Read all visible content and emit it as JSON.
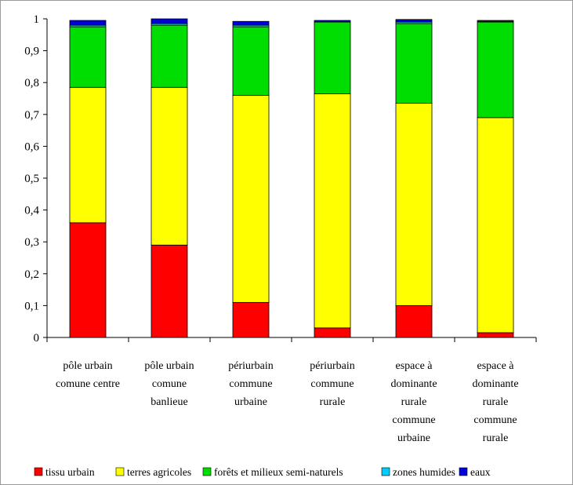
{
  "chart_data": {
    "type": "bar",
    "stacked": true,
    "title": "",
    "xlabel": "",
    "ylabel": "",
    "ylim": [
      0,
      1
    ],
    "yticks": [
      "0",
      "0,1",
      "0,2",
      "0,3",
      "0,4",
      "0,5",
      "0,6",
      "0,7",
      "0,8",
      "0,9",
      "1"
    ],
    "ytick_values": [
      0,
      0.1,
      0.2,
      0.3,
      0.4,
      0.5,
      0.6,
      0.7,
      0.8,
      0.9,
      1
    ],
    "grid": false,
    "legend_position": "bottom",
    "categories": [
      [
        "pôle urbain",
        "comune centre"
      ],
      [
        "pôle urbain",
        "comune",
        "banlieue"
      ],
      [
        "périurbain",
        "commune",
        "urbaine"
      ],
      [
        "périurbain",
        "commune",
        "rurale"
      ],
      [
        "espace à",
        "dominante",
        "rurale",
        "commune",
        "urbaine"
      ],
      [
        "espace à",
        "dominante",
        "rurale",
        "commune",
        "rurale"
      ]
    ],
    "series": [
      {
        "name": "tissu urbain",
        "color": "#ff0000",
        "values": [
          0.36,
          0.29,
          0.11,
          0.03,
          0.1,
          0.015
        ]
      },
      {
        "name": "terres agricoles",
        "color": "#ffff00",
        "values": [
          0.425,
          0.495,
          0.65,
          0.735,
          0.635,
          0.675
        ]
      },
      {
        "name": "forêts et milieux semi-naturels",
        "color": "#00dd00",
        "values": [
          0.19,
          0.195,
          0.215,
          0.225,
          0.25,
          0.3
        ]
      },
      {
        "name": "zones humides",
        "color": "#00ccff",
        "values": [
          0.005,
          0.005,
          0.005,
          0.0,
          0.005,
          0.0
        ]
      },
      {
        "name": "eaux",
        "color": "#0000dd",
        "values": [
          0.015,
          0.015,
          0.012,
          0.005,
          0.008,
          0.0
        ]
      }
    ],
    "legend_extra_color": "#1a1a1a",
    "top_cap_values": [
      0,
      0,
      0,
      0,
      0,
      0.005
    ]
  }
}
